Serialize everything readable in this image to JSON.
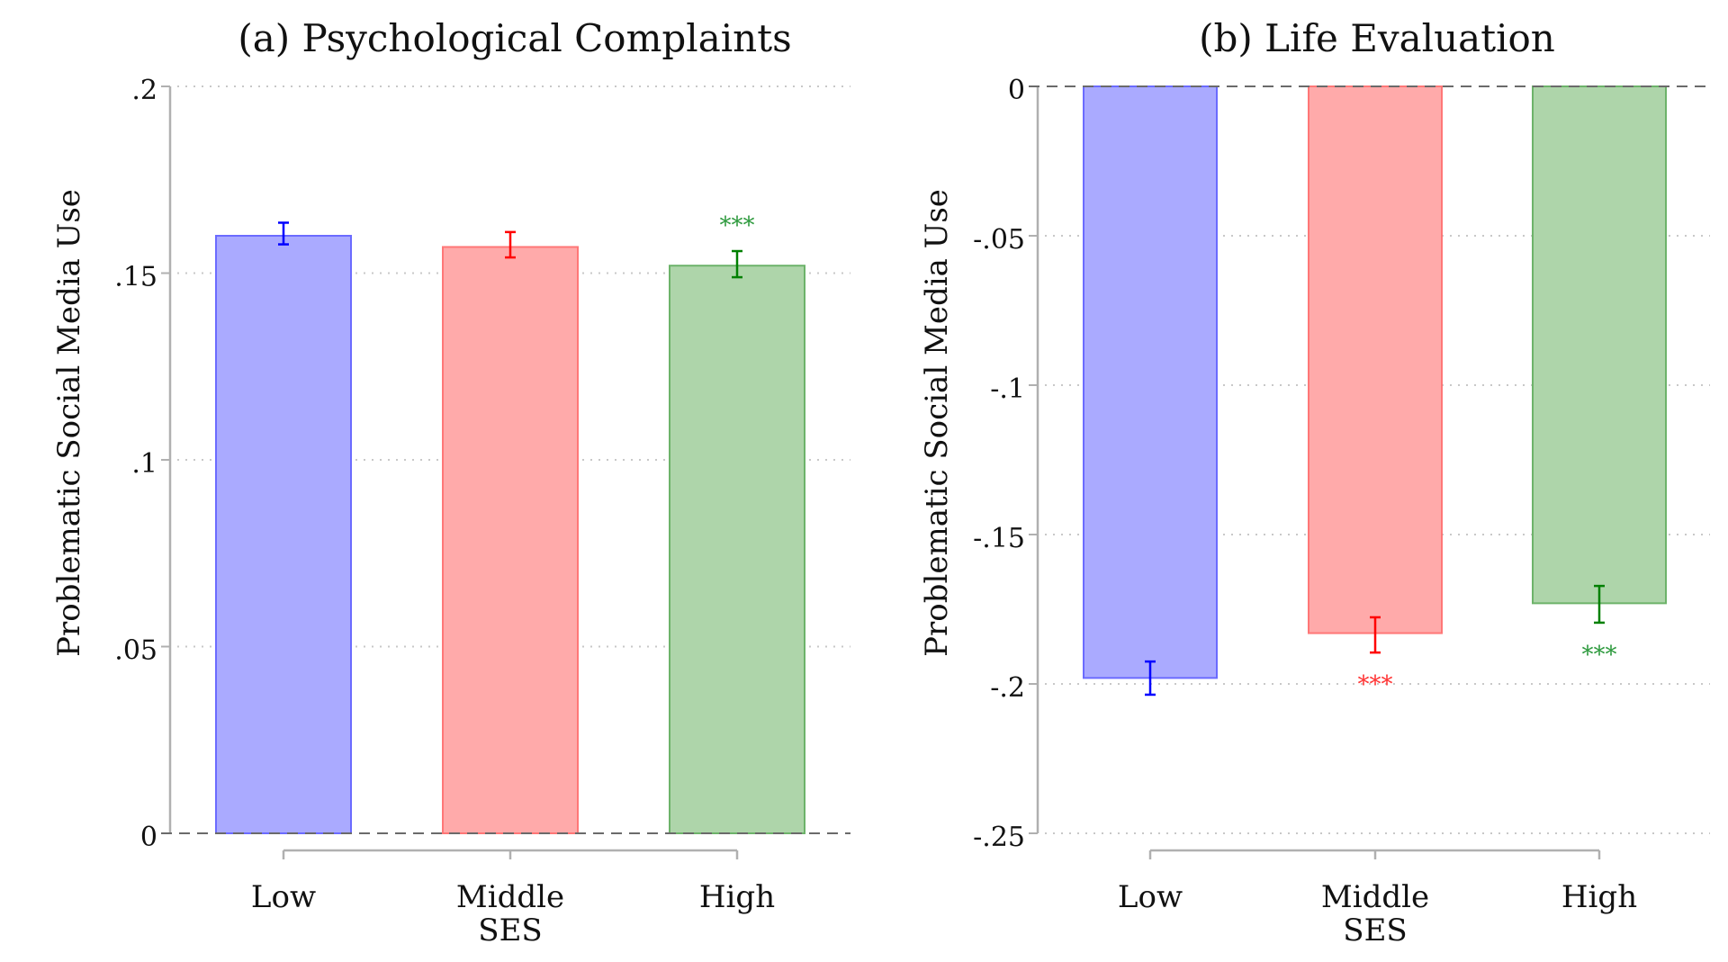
{
  "chart_data": [
    {
      "type": "bar",
      "title": "(a) Psychological Complaints",
      "xlabel": "SES",
      "ylabel": "Problematic Social Media Use",
      "ylim": [
        0,
        0.2
      ],
      "yticks": [
        0,
        0.05,
        0.1,
        0.15,
        0.2
      ],
      "ytick_labels": [
        "0",
        ".05",
        ".1",
        ".15",
        ".2"
      ],
      "grid": true,
      "reference_line": 0,
      "categories": [
        "Low",
        "Middle",
        "High"
      ],
      "values": [
        0.16,
        0.157,
        0.152
      ],
      "ci_low": [
        0.1577,
        0.1542,
        0.1489
      ],
      "ci_high": [
        0.1635,
        0.161,
        0.1559
      ],
      "significance": [
        "",
        "",
        "***"
      ],
      "colors": [
        "#aaaaff",
        "#ffaaaa",
        "#aed5aa"
      ],
      "edge_colors": [
        "#6b6bff",
        "#ff7777",
        "#6db36a"
      ],
      "error_colors": [
        "#0000ff",
        "#ff0000",
        "#008000"
      ],
      "star_colors": [
        "#0000ff",
        "#ff3333",
        "#2e9a3e"
      ]
    },
    {
      "type": "bar",
      "title": "(b) Life Evaluation",
      "xlabel": "SES",
      "ylabel": "Problematic Social Media Use",
      "ylim": [
        -0.25,
        0
      ],
      "yticks": [
        0,
        -0.05,
        -0.1,
        -0.15,
        -0.2,
        -0.25
      ],
      "ytick_labels": [
        "0",
        "-.05",
        "-.1",
        "-.15",
        "-.2",
        "-.25"
      ],
      "grid": true,
      "reference_line": 0,
      "categories": [
        "Low",
        "Middle",
        "High"
      ],
      "values": [
        -0.198,
        -0.183,
        -0.173
      ],
      "ci_low": [
        -0.2036,
        -0.1895,
        -0.1795
      ],
      "ci_high": [
        -0.1925,
        -0.1777,
        -0.1672
      ],
      "significance": [
        "",
        "***",
        "***"
      ],
      "colors": [
        "#aaaaff",
        "#ffaaaa",
        "#aed5aa"
      ],
      "edge_colors": [
        "#6b6bff",
        "#ff7777",
        "#6db36a"
      ],
      "error_colors": [
        "#0000ff",
        "#ff0000",
        "#008000"
      ],
      "star_colors": [
        "#0000ff",
        "#ff3333",
        "#2e9a3e"
      ]
    }
  ]
}
